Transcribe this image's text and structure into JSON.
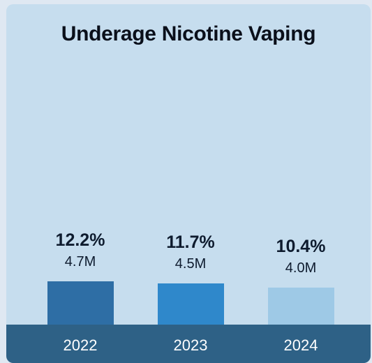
{
  "chart_data": {
    "type": "bar",
    "title": "Underage Nicotine Vaping",
    "categories": [
      "2022",
      "2023",
      "2024"
    ],
    "series": [
      {
        "values": [
          12.2,
          11.7,
          10.4
        ],
        "value_labels": [
          "12.2%",
          "11.7%",
          "10.4%"
        ],
        "count_labels": [
          "4.7M",
          "4.5M",
          "4.0M"
        ]
      }
    ],
    "colors": [
      "#2e6ea5",
      "#2f88cb",
      "#9ec9e6"
    ],
    "xlabel": "",
    "ylabel": "",
    "grid": false
  }
}
